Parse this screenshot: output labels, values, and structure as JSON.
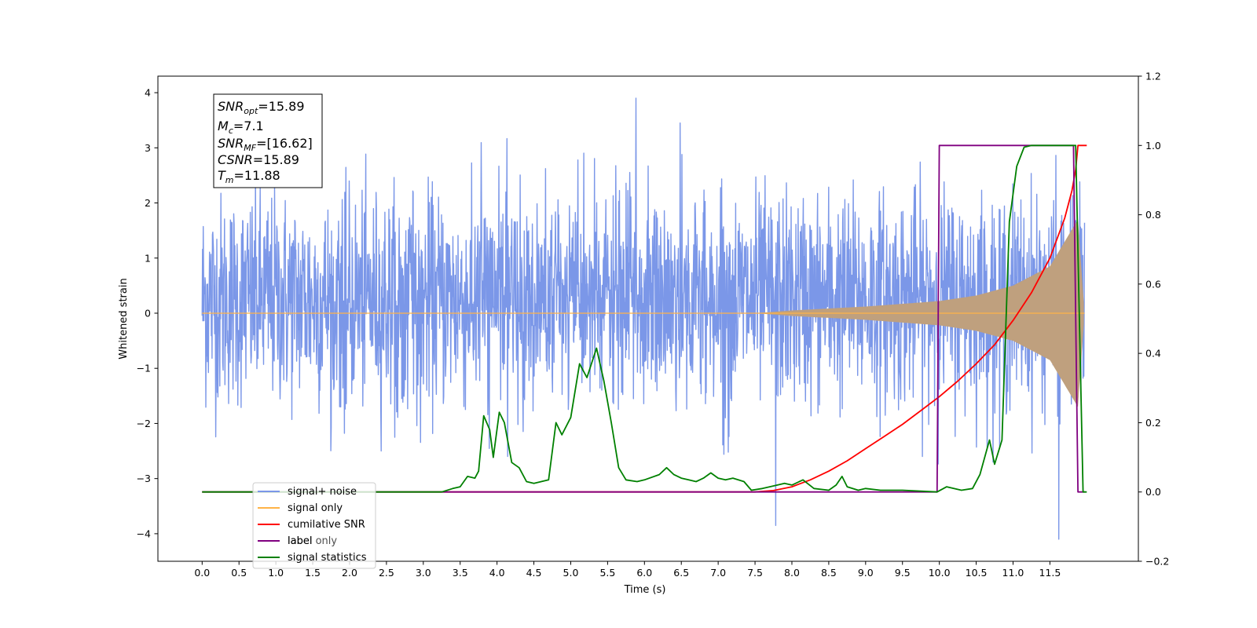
{
  "chart_data": {
    "type": "line",
    "xlabel": "Time (s)",
    "ylabel_left": "Whitened strain",
    "xlim": [
      -0.6,
      12.7
    ],
    "ylim_left": [
      -4.5,
      4.3
    ],
    "ylim_right": [
      -0.2,
      1.2
    ],
    "x_ticks": [
      "0.0",
      "0.5",
      "1.0",
      "1.5",
      "2.0",
      "2.5",
      "3.0",
      "3.5",
      "4.0",
      "4.5",
      "5.0",
      "5.5",
      "6.0",
      "6.5",
      "7.0",
      "7.5",
      "8.0",
      "8.5",
      "9.0",
      "9.5",
      "10.0",
      "10.5",
      "11.0",
      "11.5"
    ],
    "y_ticks_left": [
      "4",
      "3",
      "2",
      "1",
      "0",
      "−1",
      "−2",
      "−3",
      "−4"
    ],
    "y_ticks_right": [
      "1.2",
      "1.0",
      "0.8",
      "0.6",
      "0.4",
      "0.2",
      "0.0",
      "−0.2"
    ],
    "grid": false,
    "legend_position": "bottom-left",
    "info_box": {
      "snr_opt": {
        "sym": "SNR",
        "sub": "opt",
        "value": "=15.89"
      },
      "mc": {
        "sym": "M",
        "sub": "c",
        "value": "=7.1"
      },
      "snr_mf": {
        "sym": "SNR",
        "sub": "MF",
        "value": "=[16.62]"
      },
      "csnr": {
        "sym": "CSNR",
        "value": "=15.89"
      },
      "tm": {
        "sym": "T",
        "sub": "m",
        "value": "=11.88"
      }
    },
    "series": [
      {
        "name": "signal+ noise",
        "axis": "left",
        "color": "#7b97e8",
        "description_of_shape": "dense noise between roughly -2.5 and 3.3, occasional spikes to 3.9 and -4.1, over 0.0–11.97 s",
        "envelope": {
          "typical_low": -2.2,
          "typical_high": 2.6,
          "max_spike": 3.9,
          "min_spike": -4.1,
          "x_start": 0.0,
          "x_end": 11.97
        }
      },
      {
        "name": "signal only",
        "axis": "left",
        "color": "#ffb347",
        "fill_color": "#bfa07e",
        "description_of_shape": "chirp growing from ~0 near 7.5 s to amplitude ~1.7 at 11.88 s",
        "amplitude_points": [
          [
            7.5,
            0.0
          ],
          [
            8.0,
            0.05
          ],
          [
            9.0,
            0.12
          ],
          [
            10.0,
            0.22
          ],
          [
            10.5,
            0.32
          ],
          [
            11.0,
            0.5
          ],
          [
            11.5,
            0.85
          ],
          [
            11.88,
            1.7
          ],
          [
            11.97,
            0.0
          ]
        ]
      },
      {
        "name": "cumilative SNR",
        "axis": "right",
        "color": "#ff0000",
        "points": [
          [
            0.0,
            0.0
          ],
          [
            7.0,
            0.0
          ],
          [
            7.5,
            0.0
          ],
          [
            7.75,
            0.004
          ],
          [
            8.0,
            0.015
          ],
          [
            8.25,
            0.035
          ],
          [
            8.5,
            0.06
          ],
          [
            8.75,
            0.09
          ],
          [
            9.0,
            0.125
          ],
          [
            9.25,
            0.16
          ],
          [
            9.5,
            0.195
          ],
          [
            9.75,
            0.235
          ],
          [
            10.0,
            0.275
          ],
          [
            10.25,
            0.32
          ],
          [
            10.5,
            0.37
          ],
          [
            10.75,
            0.425
          ],
          [
            11.0,
            0.495
          ],
          [
            11.25,
            0.575
          ],
          [
            11.5,
            0.675
          ],
          [
            11.7,
            0.79
          ],
          [
            11.8,
            0.87
          ],
          [
            11.85,
            0.93
          ],
          [
            11.88,
            1.0
          ],
          [
            12.0,
            1.0
          ]
        ]
      },
      {
        "name": "label",
        "axis": "right",
        "color": "#800080",
        "points": [
          [
            0.0,
            0.0
          ],
          [
            9.97,
            0.0
          ],
          [
            10.0,
            1.0
          ],
          [
            11.82,
            1.0
          ],
          [
            11.88,
            0.0
          ],
          [
            11.97,
            0.0
          ]
        ]
      },
      {
        "name": "label only",
        "axis": "right",
        "color": "#808080",
        "points": []
      },
      {
        "name": "signal statistics",
        "axis": "right",
        "color": "#008000",
        "points": [
          [
            0.0,
            0.0
          ],
          [
            3.25,
            0.0
          ],
          [
            3.4,
            0.01
          ],
          [
            3.5,
            0.015
          ],
          [
            3.6,
            0.045
          ],
          [
            3.7,
            0.04
          ],
          [
            3.75,
            0.06
          ],
          [
            3.82,
            0.22
          ],
          [
            3.9,
            0.18
          ],
          [
            3.95,
            0.1
          ],
          [
            4.03,
            0.23
          ],
          [
            4.1,
            0.2
          ],
          [
            4.2,
            0.085
          ],
          [
            4.3,
            0.07
          ],
          [
            4.4,
            0.03
          ],
          [
            4.5,
            0.025
          ],
          [
            4.6,
            0.03
          ],
          [
            4.7,
            0.035
          ],
          [
            4.8,
            0.2
          ],
          [
            4.88,
            0.165
          ],
          [
            5.0,
            0.215
          ],
          [
            5.12,
            0.37
          ],
          [
            5.22,
            0.33
          ],
          [
            5.35,
            0.415
          ],
          [
            5.45,
            0.32
          ],
          [
            5.55,
            0.2
          ],
          [
            5.65,
            0.07
          ],
          [
            5.75,
            0.035
          ],
          [
            5.9,
            0.03
          ],
          [
            6.0,
            0.035
          ],
          [
            6.2,
            0.05
          ],
          [
            6.3,
            0.07
          ],
          [
            6.4,
            0.05
          ],
          [
            6.5,
            0.04
          ],
          [
            6.6,
            0.035
          ],
          [
            6.7,
            0.03
          ],
          [
            6.8,
            0.04
          ],
          [
            6.9,
            0.055
          ],
          [
            7.0,
            0.04
          ],
          [
            7.1,
            0.035
          ],
          [
            7.2,
            0.04
          ],
          [
            7.35,
            0.03
          ],
          [
            7.45,
            0.005
          ],
          [
            7.6,
            0.01
          ],
          [
            7.7,
            0.015
          ],
          [
            7.9,
            0.025
          ],
          [
            8.0,
            0.02
          ],
          [
            8.15,
            0.035
          ],
          [
            8.3,
            0.01
          ],
          [
            8.5,
            0.005
          ],
          [
            8.6,
            0.02
          ],
          [
            8.68,
            0.045
          ],
          [
            8.75,
            0.015
          ],
          [
            8.9,
            0.005
          ],
          [
            9.0,
            0.01
          ],
          [
            9.2,
            0.005
          ],
          [
            9.5,
            0.005
          ],
          [
            9.97,
            0.0
          ],
          [
            10.1,
            0.015
          ],
          [
            10.3,
            0.005
          ],
          [
            10.45,
            0.01
          ],
          [
            10.55,
            0.05
          ],
          [
            10.68,
            0.15
          ],
          [
            10.75,
            0.08
          ],
          [
            10.85,
            0.15
          ],
          [
            10.95,
            0.78
          ],
          [
            11.05,
            0.94
          ],
          [
            11.15,
            0.995
          ],
          [
            11.25,
            1.0
          ],
          [
            11.85,
            1.0
          ],
          [
            11.95,
            0.0
          ],
          [
            12.0,
            0.0
          ]
        ]
      }
    ]
  },
  "legend": {
    "items": [
      {
        "label": "signal+ noise",
        "color": "#7b97e8"
      },
      {
        "label": "signal only",
        "color": "#ffb347"
      },
      {
        "label": "cumilative SNR",
        "color": "#ff0000"
      },
      {
        "label": "label",
        "color": "#800080"
      },
      {
        "label": "label only",
        "color": "#808080"
      },
      {
        "label": "signal statistics",
        "color": "#008000"
      }
    ]
  }
}
